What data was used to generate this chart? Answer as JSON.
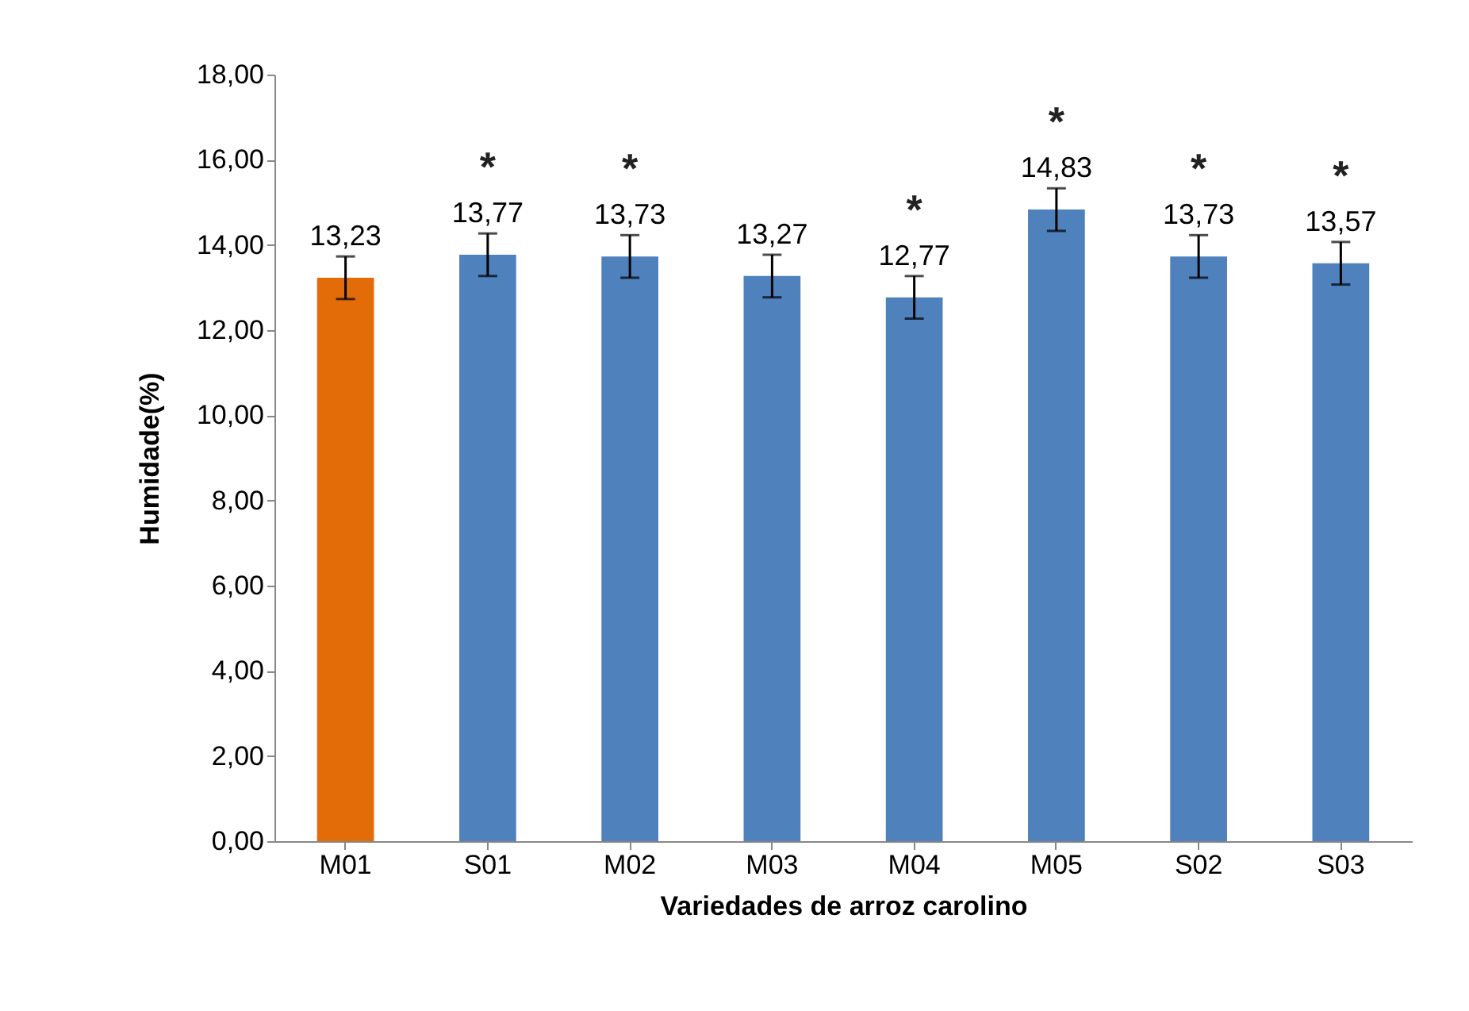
{
  "chart_data": {
    "type": "bar",
    "xlabel": "Variedades de arroz carolino",
    "ylabel": "Humidade(%)",
    "categories": [
      "M01",
      "S01",
      "M02",
      "M03",
      "M04",
      "M05",
      "S02",
      "S03"
    ],
    "values": [
      13.23,
      13.77,
      13.73,
      13.27,
      12.77,
      14.83,
      13.73,
      13.57
    ],
    "colors": [
      "#e36c09",
      "#4f81bd",
      "#4f81bd",
      "#4f81bd",
      "#4f81bd",
      "#4f81bd",
      "#4f81bd",
      "#4f81bd"
    ],
    "errors": [
      0.5,
      0.5,
      0.5,
      0.5,
      0.5,
      0.5,
      0.5,
      0.5
    ],
    "value_labels": [
      "13,23",
      "13,77",
      "13,73",
      "13,27",
      "12,77",
      "14,83",
      "13,73",
      "13,57"
    ],
    "ylim": [
      0,
      18
    ],
    "yticks": [
      {
        "value": 0,
        "label": "0,00"
      },
      {
        "value": 2,
        "label": "2,00"
      },
      {
        "value": 4,
        "label": "4,00"
      },
      {
        "value": 6,
        "label": "6,00"
      },
      {
        "value": 8,
        "label": "8,00"
      },
      {
        "value": 10,
        "label": "10,00"
      },
      {
        "value": 12,
        "label": "12,00"
      },
      {
        "value": 14,
        "label": "14,00"
      },
      {
        "value": 16,
        "label": "16,00"
      },
      {
        "value": 18,
        "label": "18,00"
      }
    ],
    "annotations": [
      "*",
      "*",
      "*",
      "*",
      "*",
      "*"
    ],
    "grid": false
  }
}
